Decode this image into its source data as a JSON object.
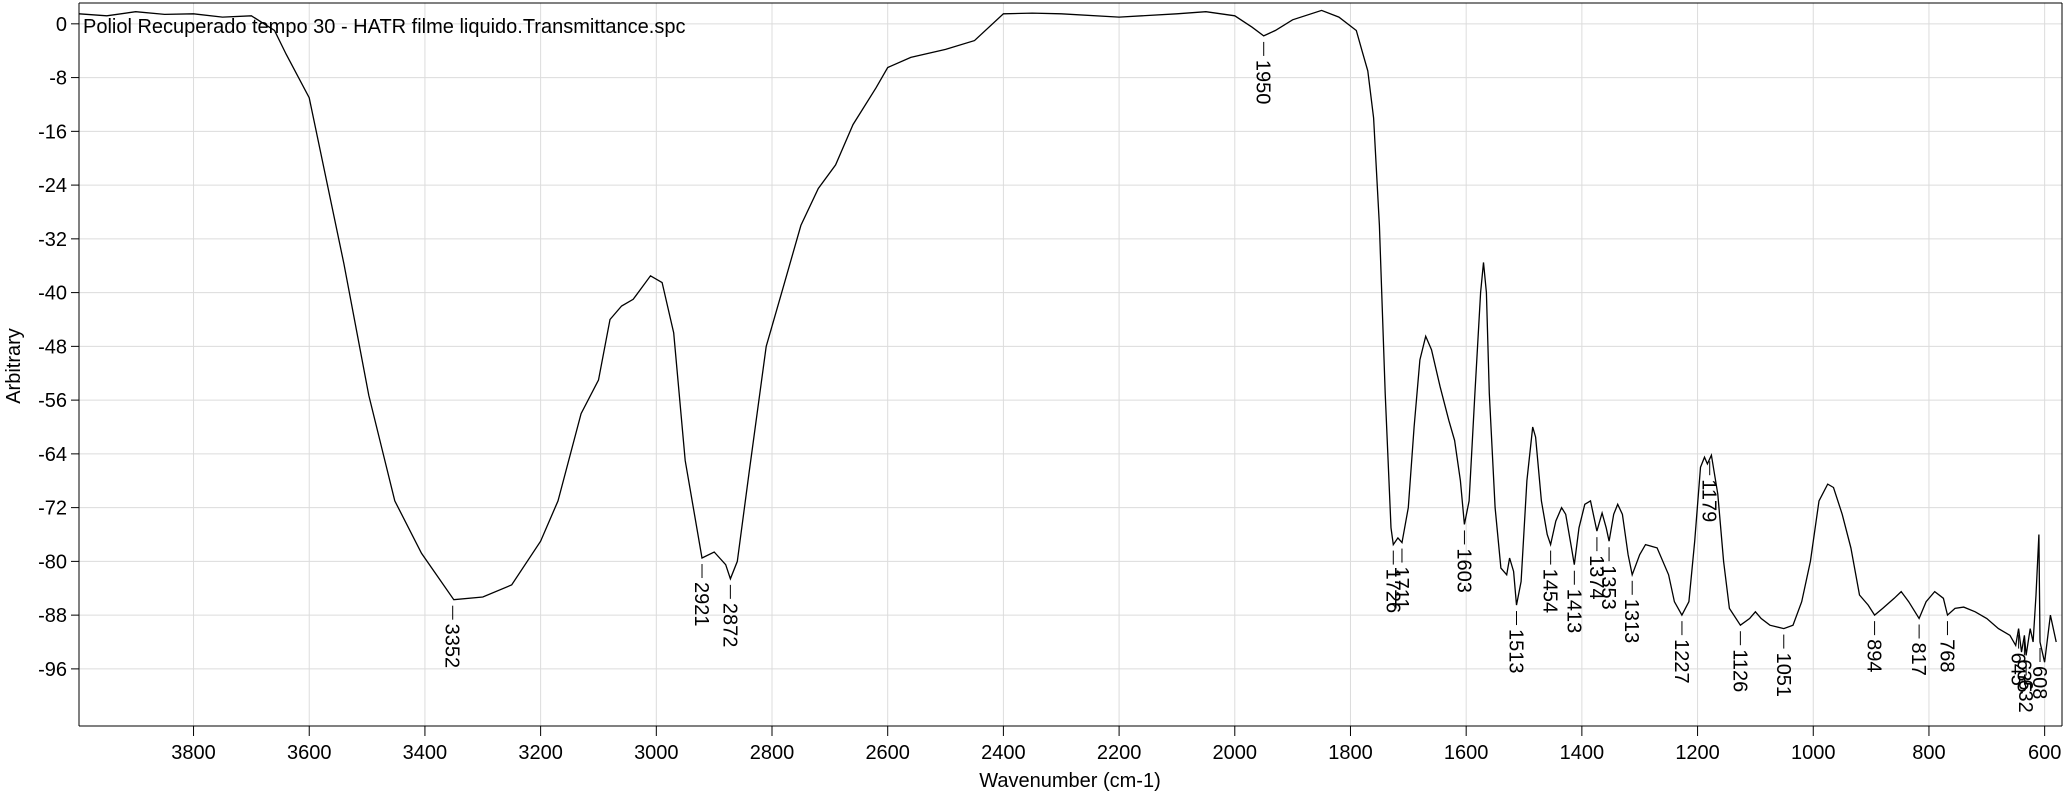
{
  "chart_data": {
    "type": "line",
    "title": "Poliol Recuperado tempo 30 - HATR filme liquido.Transmittance.spc",
    "x_label": "Wavenumber (cm-1)",
    "y_label": "Arbitrary",
    "color": "#000000",
    "grid": true,
    "xlim": [
      3998,
      570
    ],
    "ylim": [
      -104.5,
      3.1
    ],
    "xticks": [
      3800,
      3600,
      3400,
      3200,
      3000,
      2800,
      2600,
      2400,
      2200,
      2000,
      1800,
      1600,
      1400,
      1200,
      1000,
      800,
      600
    ],
    "yticks": [
      0,
      -8,
      -16,
      -24,
      -32,
      -40,
      -48,
      -56,
      -64,
      -72,
      -80,
      -88,
      -96
    ],
    "x": [
      3998,
      3950,
      3900,
      3850,
      3800,
      3750,
      3700,
      3660,
      3640,
      3600,
      3540,
      3497,
      3452,
      3406,
      3350,
      3300,
      3250,
      3200,
      3170,
      3130,
      3100,
      3080,
      3060,
      3040,
      3010,
      2990,
      2970,
      2950,
      2921,
      2900,
      2880,
      2872,
      2860,
      2840,
      2810,
      2780,
      2750,
      2720,
      2690,
      2660,
      2620,
      2600,
      2560,
      2500,
      2450,
      2400,
      2350,
      2300,
      2200,
      2100,
      2050,
      2000,
      1970,
      1950,
      1930,
      1900,
      1850,
      1820,
      1790,
      1780,
      1770,
      1760,
      1750,
      1740,
      1730,
      1726,
      1718,
      1711,
      1700,
      1690,
      1680,
      1670,
      1660,
      1645,
      1630,
      1620,
      1610,
      1603,
      1595,
      1585,
      1575,
      1570,
      1565,
      1560,
      1550,
      1540,
      1530,
      1525,
      1518,
      1513,
      1505,
      1495,
      1485,
      1480,
      1470,
      1460,
      1454,
      1445,
      1435,
      1428,
      1418,
      1413,
      1405,
      1395,
      1385,
      1374,
      1365,
      1358,
      1353,
      1345,
      1338,
      1330,
      1320,
      1313,
      1300,
      1290,
      1270,
      1250,
      1240,
      1227,
      1215,
      1205,
      1195,
      1188,
      1183,
      1176,
      1165,
      1155,
      1145,
      1126,
      1110,
      1100,
      1090,
      1075,
      1051,
      1035,
      1020,
      1005,
      990,
      975,
      965,
      950,
      935,
      920,
      905,
      894,
      880,
      860,
      848,
      835,
      817,
      805,
      790,
      775,
      768,
      755,
      740,
      720,
      700,
      680,
      660,
      650,
      645,
      640,
      635,
      632,
      625,
      620,
      615,
      610,
      608,
      600,
      590,
      580
    ],
    "values": [
      1.5,
      1.2,
      1.8,
      1.4,
      1.5,
      1.0,
      1.2,
      -1,
      -4.5,
      -11,
      -35.7,
      -55.3,
      -71,
      -78.8,
      -85.7,
      -85.3,
      -83.5,
      -77,
      -71,
      -58,
      -53,
      -44,
      -42,
      -41,
      -37.5,
      -38.5,
      -46,
      -65,
      -79.5,
      -78.6,
      -80.5,
      -82.6,
      -80,
      -67,
      -48,
      -39,
      -30,
      -24.5,
      -21,
      -15,
      -9.5,
      -6.5,
      -5,
      -3.8,
      -2.5,
      1.5,
      1.6,
      1.5,
      1,
      1.5,
      1.8,
      1.2,
      -0.5,
      -1.8,
      -1,
      0.6,
      2,
      1,
      -1,
      -4,
      -7,
      -14,
      -30,
      -55,
      -75,
      -77.5,
      -76.5,
      -77.2,
      -72,
      -60,
      -50,
      -46.5,
      -48.5,
      -54,
      -59,
      -62,
      -68,
      -74.5,
      -71,
      -55,
      -40,
      -35.5,
      -40,
      -55,
      -72,
      -81,
      -82,
      -79.5,
      -81.5,
      -86.5,
      -83,
      -68,
      -60,
      -61.5,
      -71,
      -76,
      -77.5,
      -74,
      -72,
      -73,
      -78,
      -80.5,
      -75,
      -71.5,
      -71,
      -75.5,
      -72.8,
      -75,
      -77,
      -73,
      -71.5,
      -73,
      -79,
      -82,
      -79,
      -77.5,
      -78,
      -82,
      -86,
      -88,
      -86,
      -77,
      -66,
      -64.5,
      -65.5,
      -64.2,
      -70,
      -80,
      -87,
      -89.5,
      -88.5,
      -87.5,
      -88.5,
      -89.5,
      -90,
      -89.5,
      -86,
      -80,
      -71,
      -68.5,
      -69,
      -73,
      -78,
      -85,
      -86.5,
      -88,
      -87,
      -85.5,
      -84.5,
      -86,
      -88.5,
      -86,
      -84.5,
      -85.5,
      -88,
      -87,
      -86.8,
      -87.5,
      -88.5,
      -90,
      -91,
      -92.5,
      -90,
      -93.5,
      -91,
      -94,
      -90,
      -92,
      -85,
      -76,
      -92,
      -95,
      -88,
      -92
    ],
    "peaks": [
      {
        "x": 3352,
        "y": -85.7
      },
      {
        "x": 2921,
        "y": -79.5
      },
      {
        "x": 2872,
        "y": -82.6
      },
      {
        "x": 1950,
        "y": -1.8
      },
      {
        "x": 1726,
        "y": -77.5
      },
      {
        "x": 1711,
        "y": -77.2
      },
      {
        "x": 1603,
        "y": -74.5
      },
      {
        "x": 1513,
        "y": -86.5
      },
      {
        "x": 1454,
        "y": -77.5
      },
      {
        "x": 1413,
        "y": -80.5
      },
      {
        "x": 1374,
        "y": -75.5
      },
      {
        "x": 1353,
        "y": -77
      },
      {
        "x": 1313,
        "y": -82
      },
      {
        "x": 1227,
        "y": -88
      },
      {
        "x": 1179,
        "y": -64.2
      },
      {
        "x": 1126,
        "y": -89.5
      },
      {
        "x": 1051,
        "y": -90
      },
      {
        "x": 894,
        "y": -88
      },
      {
        "x": 817,
        "y": -88.5
      },
      {
        "x": 768,
        "y": -88
      },
      {
        "x": 645,
        "y": -90
      },
      {
        "x": 635,
        "y": -91
      },
      {
        "x": 632,
        "y": -94
      },
      {
        "x": 608,
        "y": -92
      }
    ]
  }
}
